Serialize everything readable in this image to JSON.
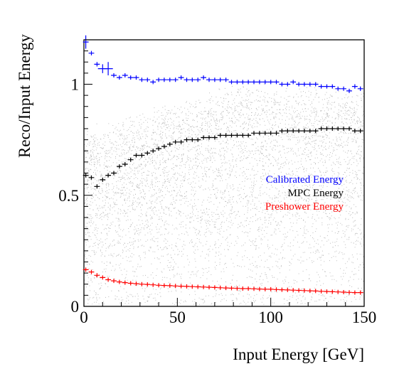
{
  "chart_data": {
    "type": "scatter",
    "xlabel": "Input Energy [GeV]",
    "ylabel": "Reco/Input Energy",
    "xlim": [
      0,
      150
    ],
    "ylim": [
      0,
      1.2
    ],
    "x_ticks": [
      {
        "value": 0,
        "label": "0"
      },
      {
        "value": 50,
        "label": "50"
      },
      {
        "value": 100,
        "label": "100"
      },
      {
        "value": 150,
        "label": "150"
      }
    ],
    "y_ticks": [
      {
        "value": 0,
        "label": "0"
      },
      {
        "value": 0.5,
        "label": "0.5"
      },
      {
        "value": 1,
        "label": "1"
      }
    ],
    "legend_placement": "right-middle",
    "background_points": {
      "description_color": "#bdbdbd",
      "x_range": [
        0,
        150
      ],
      "y_range": [
        0,
        1.06
      ]
    },
    "series": [
      {
        "name": "Calibrated Energy",
        "color": "#0000ff",
        "x": [
          1,
          4,
          7,
          10,
          13,
          16,
          19,
          22,
          25,
          28,
          31,
          34,
          37,
          40,
          43,
          46,
          49,
          52,
          55,
          58,
          61,
          64,
          67,
          70,
          73,
          76,
          79,
          82,
          85,
          88,
          91,
          94,
          97,
          100,
          103,
          106,
          109,
          112,
          115,
          118,
          121,
          124,
          127,
          130,
          133,
          136,
          139,
          142,
          145,
          148
        ],
        "y": [
          1.19,
          1.14,
          1.09,
          1.07,
          1.07,
          1.04,
          1.03,
          1.04,
          1.03,
          1.03,
          1.02,
          1.02,
          1.01,
          1.02,
          1.02,
          1.02,
          1.02,
          1.03,
          1.02,
          1.02,
          1.02,
          1.03,
          1.02,
          1.02,
          1.02,
          1.02,
          1.01,
          1.01,
          1.01,
          1.01,
          1.01,
          1.01,
          1.01,
          1.01,
          1.01,
          1.0,
          1.0,
          1.01,
          1.0,
          1.0,
          1.0,
          1.0,
          0.99,
          0.99,
          0.99,
          0.98,
          0.98,
          0.97,
          0.99,
          0.98
        ],
        "xerr": [
          1.5,
          1.5,
          1.5,
          2.5,
          2.5,
          1.5,
          1.5,
          1.5,
          1.5,
          1.5,
          1.5,
          1.5,
          1.5,
          1.5,
          1.5,
          1.5,
          1.5,
          1.5,
          1.5,
          1.5,
          1.5,
          1.5,
          1.5,
          1.5,
          1.5,
          1.5,
          1.5,
          1.5,
          1.5,
          1.5,
          1.5,
          1.5,
          1.5,
          1.5,
          1.5,
          1.5,
          1.5,
          1.5,
          1.5,
          1.5,
          1.5,
          1.5,
          1.5,
          1.5,
          1.5,
          1.5,
          1.5,
          1.5,
          1.5,
          1.5
        ],
        "yerr": [
          0.03,
          0.01,
          0.01,
          0.02,
          0.03,
          0.005,
          0.005,
          0.005,
          0.005,
          0.005,
          0.005,
          0.005,
          0.005,
          0.005,
          0.005,
          0.005,
          0.005,
          0.005,
          0.005,
          0.005,
          0.005,
          0.005,
          0.005,
          0.005,
          0.005,
          0.005,
          0.005,
          0.005,
          0.005,
          0.005,
          0.005,
          0.005,
          0.005,
          0.005,
          0.005,
          0.005,
          0.005,
          0.005,
          0.005,
          0.005,
          0.005,
          0.005,
          0.005,
          0.005,
          0.005,
          0.005,
          0.005,
          0.005,
          0.01,
          0.01
        ]
      },
      {
        "name": "MPC Energy",
        "color": "#000000",
        "x": [
          1,
          4,
          7,
          10,
          13,
          16,
          19,
          22,
          25,
          28,
          31,
          34,
          37,
          40,
          43,
          46,
          49,
          52,
          55,
          58,
          61,
          64,
          67,
          70,
          73,
          76,
          79,
          82,
          85,
          88,
          91,
          94,
          97,
          100,
          103,
          106,
          109,
          112,
          115,
          118,
          121,
          124,
          127,
          130,
          133,
          136,
          139,
          142,
          145,
          148
        ],
        "y": [
          0.59,
          0.58,
          0.54,
          0.57,
          0.59,
          0.6,
          0.63,
          0.64,
          0.66,
          0.68,
          0.68,
          0.69,
          0.7,
          0.71,
          0.72,
          0.73,
          0.74,
          0.74,
          0.75,
          0.75,
          0.75,
          0.76,
          0.76,
          0.76,
          0.77,
          0.77,
          0.77,
          0.77,
          0.77,
          0.77,
          0.78,
          0.78,
          0.78,
          0.78,
          0.78,
          0.79,
          0.79,
          0.79,
          0.79,
          0.79,
          0.79,
          0.79,
          0.8,
          0.8,
          0.8,
          0.8,
          0.8,
          0.8,
          0.79,
          0.79
        ],
        "xerr": [
          1.5,
          1.5,
          1.5,
          1.5,
          1.5,
          1.5,
          1.5,
          1.5,
          1.5,
          1.5,
          1.5,
          1.5,
          1.5,
          1.5,
          1.5,
          1.5,
          1.5,
          1.5,
          1.5,
          1.5,
          1.5,
          1.5,
          1.5,
          1.5,
          1.5,
          1.5,
          1.5,
          1.5,
          1.5,
          1.5,
          1.5,
          1.5,
          1.5,
          1.5,
          1.5,
          1.5,
          1.5,
          1.5,
          1.5,
          1.5,
          1.5,
          1.5,
          1.5,
          1.5,
          1.5,
          1.5,
          1.5,
          1.5,
          1.5,
          1.5
        ],
        "yerr": [
          0.01,
          0.005,
          0.005,
          0.005,
          0.005,
          0.005,
          0.005,
          0.005,
          0.005,
          0.005,
          0.005,
          0.005,
          0.005,
          0.005,
          0.005,
          0.005,
          0.005,
          0.005,
          0.005,
          0.005,
          0.005,
          0.005,
          0.005,
          0.005,
          0.005,
          0.005,
          0.005,
          0.005,
          0.005,
          0.005,
          0.005,
          0.005,
          0.005,
          0.005,
          0.005,
          0.005,
          0.005,
          0.005,
          0.005,
          0.005,
          0.005,
          0.005,
          0.005,
          0.005,
          0.005,
          0.005,
          0.005,
          0.005,
          0.01,
          0.01
        ]
      },
      {
        "name": "Preshower Energy",
        "color": "#ff0000",
        "x": [
          1,
          4,
          7,
          10,
          13,
          16,
          19,
          22,
          25,
          28,
          31,
          34,
          37,
          40,
          43,
          46,
          49,
          52,
          55,
          58,
          61,
          64,
          67,
          70,
          73,
          76,
          79,
          82,
          85,
          88,
          91,
          94,
          97,
          100,
          103,
          106,
          109,
          112,
          115,
          118,
          121,
          124,
          127,
          130,
          133,
          136,
          139,
          142,
          145,
          148
        ],
        "y": [
          0.165,
          0.155,
          0.14,
          0.13,
          0.12,
          0.115,
          0.11,
          0.107,
          0.104,
          0.102,
          0.1,
          0.099,
          0.097,
          0.095,
          0.094,
          0.093,
          0.092,
          0.091,
          0.09,
          0.089,
          0.088,
          0.087,
          0.086,
          0.085,
          0.084,
          0.083,
          0.082,
          0.081,
          0.08,
          0.08,
          0.079,
          0.078,
          0.077,
          0.077,
          0.076,
          0.075,
          0.074,
          0.073,
          0.072,
          0.071,
          0.07,
          0.069,
          0.068,
          0.067,
          0.066,
          0.065,
          0.064,
          0.063,
          0.062,
          0.062
        ],
        "xerr": [
          1.5,
          1.5,
          1.5,
          1.5,
          1.5,
          1.5,
          1.5,
          1.5,
          1.5,
          1.5,
          1.5,
          1.5,
          1.5,
          1.5,
          1.5,
          1.5,
          1.5,
          1.5,
          1.5,
          1.5,
          1.5,
          1.5,
          1.5,
          1.5,
          1.5,
          1.5,
          1.5,
          1.5,
          1.5,
          1.5,
          1.5,
          1.5,
          1.5,
          1.5,
          1.5,
          1.5,
          1.5,
          1.5,
          1.5,
          1.5,
          1.5,
          1.5,
          1.5,
          1.5,
          1.5,
          1.5,
          1.5,
          1.5,
          1.5,
          1.5
        ],
        "yerr": [
          0.004,
          0.002,
          0.002,
          0.002,
          0.002,
          0.001,
          0.001,
          0.001,
          0.001,
          0.001,
          0.001,
          0.001,
          0.001,
          0.001,
          0.001,
          0.001,
          0.001,
          0.001,
          0.001,
          0.001,
          0.001,
          0.001,
          0.001,
          0.001,
          0.001,
          0.001,
          0.001,
          0.001,
          0.001,
          0.001,
          0.001,
          0.001,
          0.001,
          0.001,
          0.001,
          0.001,
          0.001,
          0.001,
          0.001,
          0.001,
          0.001,
          0.001,
          0.001,
          0.001,
          0.001,
          0.001,
          0.001,
          0.001,
          0.001,
          0.001
        ]
      }
    ]
  }
}
